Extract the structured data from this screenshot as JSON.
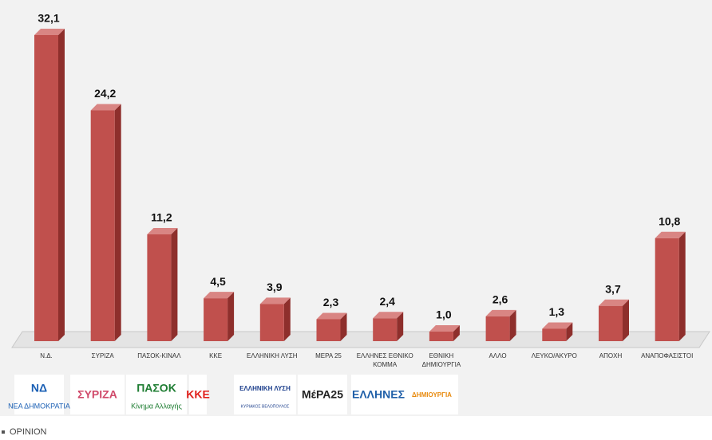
{
  "chart_data": {
    "type": "bar3d",
    "categories": [
      "Ν.Δ.",
      "ΣΥΡΙΖΑ",
      "ΠΑΣΟΚ-ΚΙΝΑΛ",
      "ΚΚΕ",
      "ΕΛΛΗΝΙΚΗ ΛΥΣΗ",
      "ΜΕΡΑ 25",
      "ΕΛΛΗΝΕΣ ΕΘΝΙΚΟ ΚΟΜΜΑ",
      "ΕΘΝΙΚΗ ΔΗΜΙΟΥΡΓΙΑ",
      "ΑΛΛΟ",
      "ΛΕΥΚΟ/ΑΚΥΡΟ",
      "ΑΠΟΧΗ",
      "ΑΝΑΠΟΦΑΣΙΣΤΟΙ"
    ],
    "values": [
      32.1,
      24.2,
      11.2,
      4.5,
      3.9,
      2.3,
      2.4,
      1.0,
      2.6,
      1.3,
      3.7,
      10.8
    ],
    "value_labels": [
      "32,1",
      "24,2",
      "11,2",
      "4,5",
      "3,9",
      "2,3",
      "2,4",
      "1,0",
      "2,6",
      "1,3",
      "3,7",
      "10,8"
    ],
    "color": "#c0504d"
  },
  "logos": [
    {
      "name": "ΝΔ",
      "sub": "ΝΕΑ ΔΗΜΟΚΡΑΤΙΑ",
      "color": "#1a5fb4"
    },
    {
      "name": "ΣΥΡΙΖΑ",
      "sub": "",
      "color": "#d04a6a"
    },
    {
      "name": "ΠΑΣΟΚ",
      "sub": "Κίνημα Αλλαγής",
      "color": "#1e7d32"
    },
    {
      "name": "ΚΚΕ",
      "sub": "",
      "color": "#e0201b"
    },
    {
      "name": "ΕΛΛΗΝΙΚΗ ΛΥΣΗ",
      "sub": "ΚΥΡΙΑΚΟΣ ΒΕΛΟΠΟΥΛΟΣ",
      "color": "#1c3f8c"
    },
    {
      "name": "ΜέΡΑ25",
      "sub": "",
      "color": "#222222"
    },
    {
      "name": "ΕΛΛΗΝΕΣ",
      "sub": "",
      "color": "#1f5fa8"
    },
    {
      "name": "ΔΗΜΙΟΥΡΓΙΑ",
      "sub": "",
      "color": "#e8890c"
    }
  ],
  "caption": "OPINION"
}
